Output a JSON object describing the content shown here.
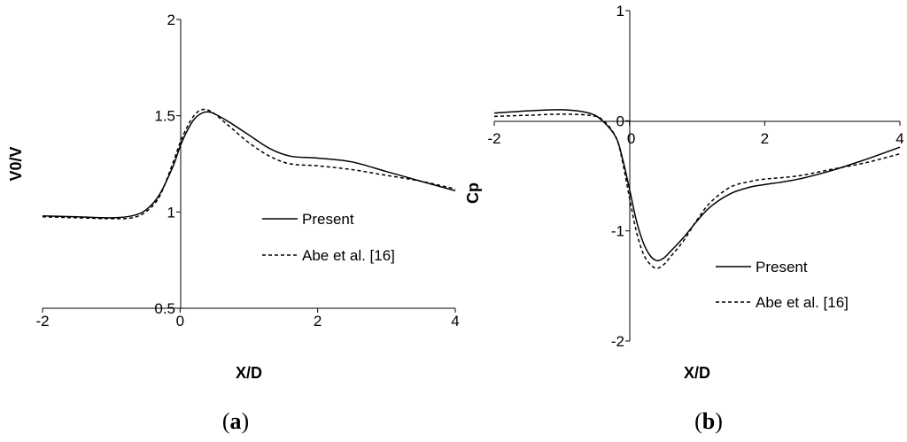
{
  "chart_data": [
    {
      "type": "line",
      "panel_label": "a",
      "xlabel": "X/D",
      "ylabel": "V0/V",
      "xlim": [
        -2,
        4
      ],
      "ylim": [
        0.5,
        2
      ],
      "xticks": [
        "-2",
        "0",
        "2",
        "4"
      ],
      "yticks": [
        "0.5",
        "1",
        "1.5",
        "2"
      ],
      "grid": false,
      "legend": "center-right",
      "series": [
        {
          "name": "Present",
          "style": "solid",
          "x": [
            -2,
            -1.5,
            -1,
            -0.7,
            -0.5,
            -0.3,
            -0.1,
            0,
            0.1,
            0.2,
            0.3,
            0.4,
            0.5,
            0.7,
            1,
            1.3,
            1.6,
            2,
            2.5,
            3,
            3.5,
            4
          ],
          "y": [
            0.98,
            0.975,
            0.97,
            0.98,
            1.01,
            1.09,
            1.24,
            1.34,
            1.42,
            1.48,
            1.51,
            1.52,
            1.51,
            1.47,
            1.4,
            1.33,
            1.29,
            1.28,
            1.26,
            1.21,
            1.16,
            1.11
          ]
        },
        {
          "name": "Abe et al. [16]",
          "style": "dashed",
          "x": [
            -2,
            -1.5,
            -1,
            -0.7,
            -0.5,
            -0.3,
            -0.1,
            0,
            0.1,
            0.2,
            0.3,
            0.4,
            0.5,
            0.7,
            1,
            1.3,
            1.6,
            2,
            2.5,
            3,
            3.5,
            4
          ],
          "y": [
            0.975,
            0.97,
            0.965,
            0.97,
            1.0,
            1.08,
            1.26,
            1.36,
            1.44,
            1.5,
            1.53,
            1.53,
            1.51,
            1.45,
            1.36,
            1.29,
            1.25,
            1.24,
            1.22,
            1.19,
            1.16,
            1.12
          ]
        }
      ]
    },
    {
      "type": "line",
      "panel_label": "b",
      "xlabel": "X/D",
      "ylabel": "Cp",
      "xlim": [
        -2,
        4
      ],
      "ylim": [
        -2,
        1
      ],
      "xticks": [
        "-2",
        "0",
        "2",
        "4"
      ],
      "yticks": [
        "-2",
        "-1",
        "0",
        "1"
      ],
      "grid": false,
      "legend": "bottom-right",
      "series": [
        {
          "name": "Present",
          "style": "solid",
          "x": [
            -2,
            -1.5,
            -1,
            -0.6,
            -0.4,
            -0.2,
            -0.1,
            0,
            0.1,
            0.2,
            0.3,
            0.4,
            0.5,
            0.6,
            0.8,
            1,
            1.2,
            1.5,
            1.8,
            2,
            2.5,
            3,
            3.5,
            4
          ],
          "y": [
            0.07,
            0.09,
            0.1,
            0.07,
            0.0,
            -0.15,
            -0.35,
            -0.62,
            -0.9,
            -1.1,
            -1.22,
            -1.27,
            -1.25,
            -1.19,
            -1.06,
            -0.91,
            -0.78,
            -0.66,
            -0.6,
            -0.58,
            -0.53,
            -0.45,
            -0.35,
            -0.24
          ]
        },
        {
          "name": "Abe et al. [16]",
          "style": "dashed",
          "x": [
            -2,
            -1.5,
            -1,
            -0.6,
            -0.4,
            -0.2,
            -0.1,
            0,
            0.1,
            0.2,
            0.3,
            0.4,
            0.5,
            0.6,
            0.8,
            1,
            1.2,
            1.5,
            1.8,
            2,
            2.5,
            3,
            3.5,
            4
          ],
          "y": [
            0.04,
            0.05,
            0.06,
            0.05,
            0.01,
            -0.15,
            -0.38,
            -0.7,
            -1.0,
            -1.2,
            -1.3,
            -1.34,
            -1.31,
            -1.24,
            -1.09,
            -0.9,
            -0.74,
            -0.6,
            -0.55,
            -0.53,
            -0.5,
            -0.44,
            -0.38,
            -0.3
          ]
        }
      ]
    }
  ],
  "captions": {
    "a": {
      "open": "(",
      "letter": "a",
      "close": ")"
    },
    "b": {
      "open": "(",
      "letter": "b",
      "close": ")"
    }
  },
  "colors": {
    "line": "#000000",
    "axis": "#000000"
  }
}
